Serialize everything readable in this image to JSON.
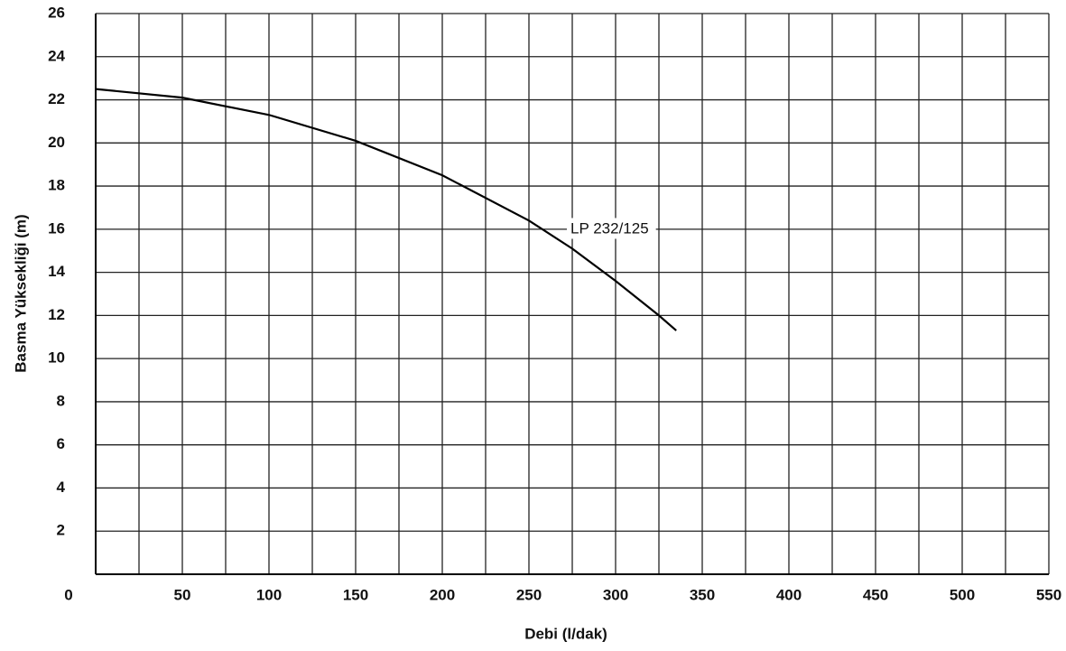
{
  "chart_data": {
    "type": "line",
    "xlabel": "Debi (l/dak)",
    "ylabel": "Basma Yüksekliği (m)",
    "xlim": [
      0,
      550
    ],
    "xticks": [
      0,
      50,
      100,
      150,
      200,
      250,
      300,
      350,
      400,
      450,
      500,
      550
    ],
    "xminor": [
      25,
      75,
      125,
      175,
      225,
      275,
      325,
      375,
      425,
      475,
      525
    ],
    "ylim": [
      0,
      26
    ],
    "yticks": [
      2,
      4,
      6,
      8,
      10,
      12,
      14,
      16,
      18,
      20,
      22,
      24,
      26
    ],
    "grid": true,
    "series": [
      {
        "name": "LP 232/125",
        "color": "#000000",
        "x": [
          0,
          50,
          100,
          150,
          200,
          250,
          275,
          300,
          325,
          335
        ],
        "values": [
          22.5,
          22.1,
          21.3,
          20.1,
          18.5,
          16.4,
          15.1,
          13.6,
          12.0,
          11.3
        ]
      }
    ]
  }
}
